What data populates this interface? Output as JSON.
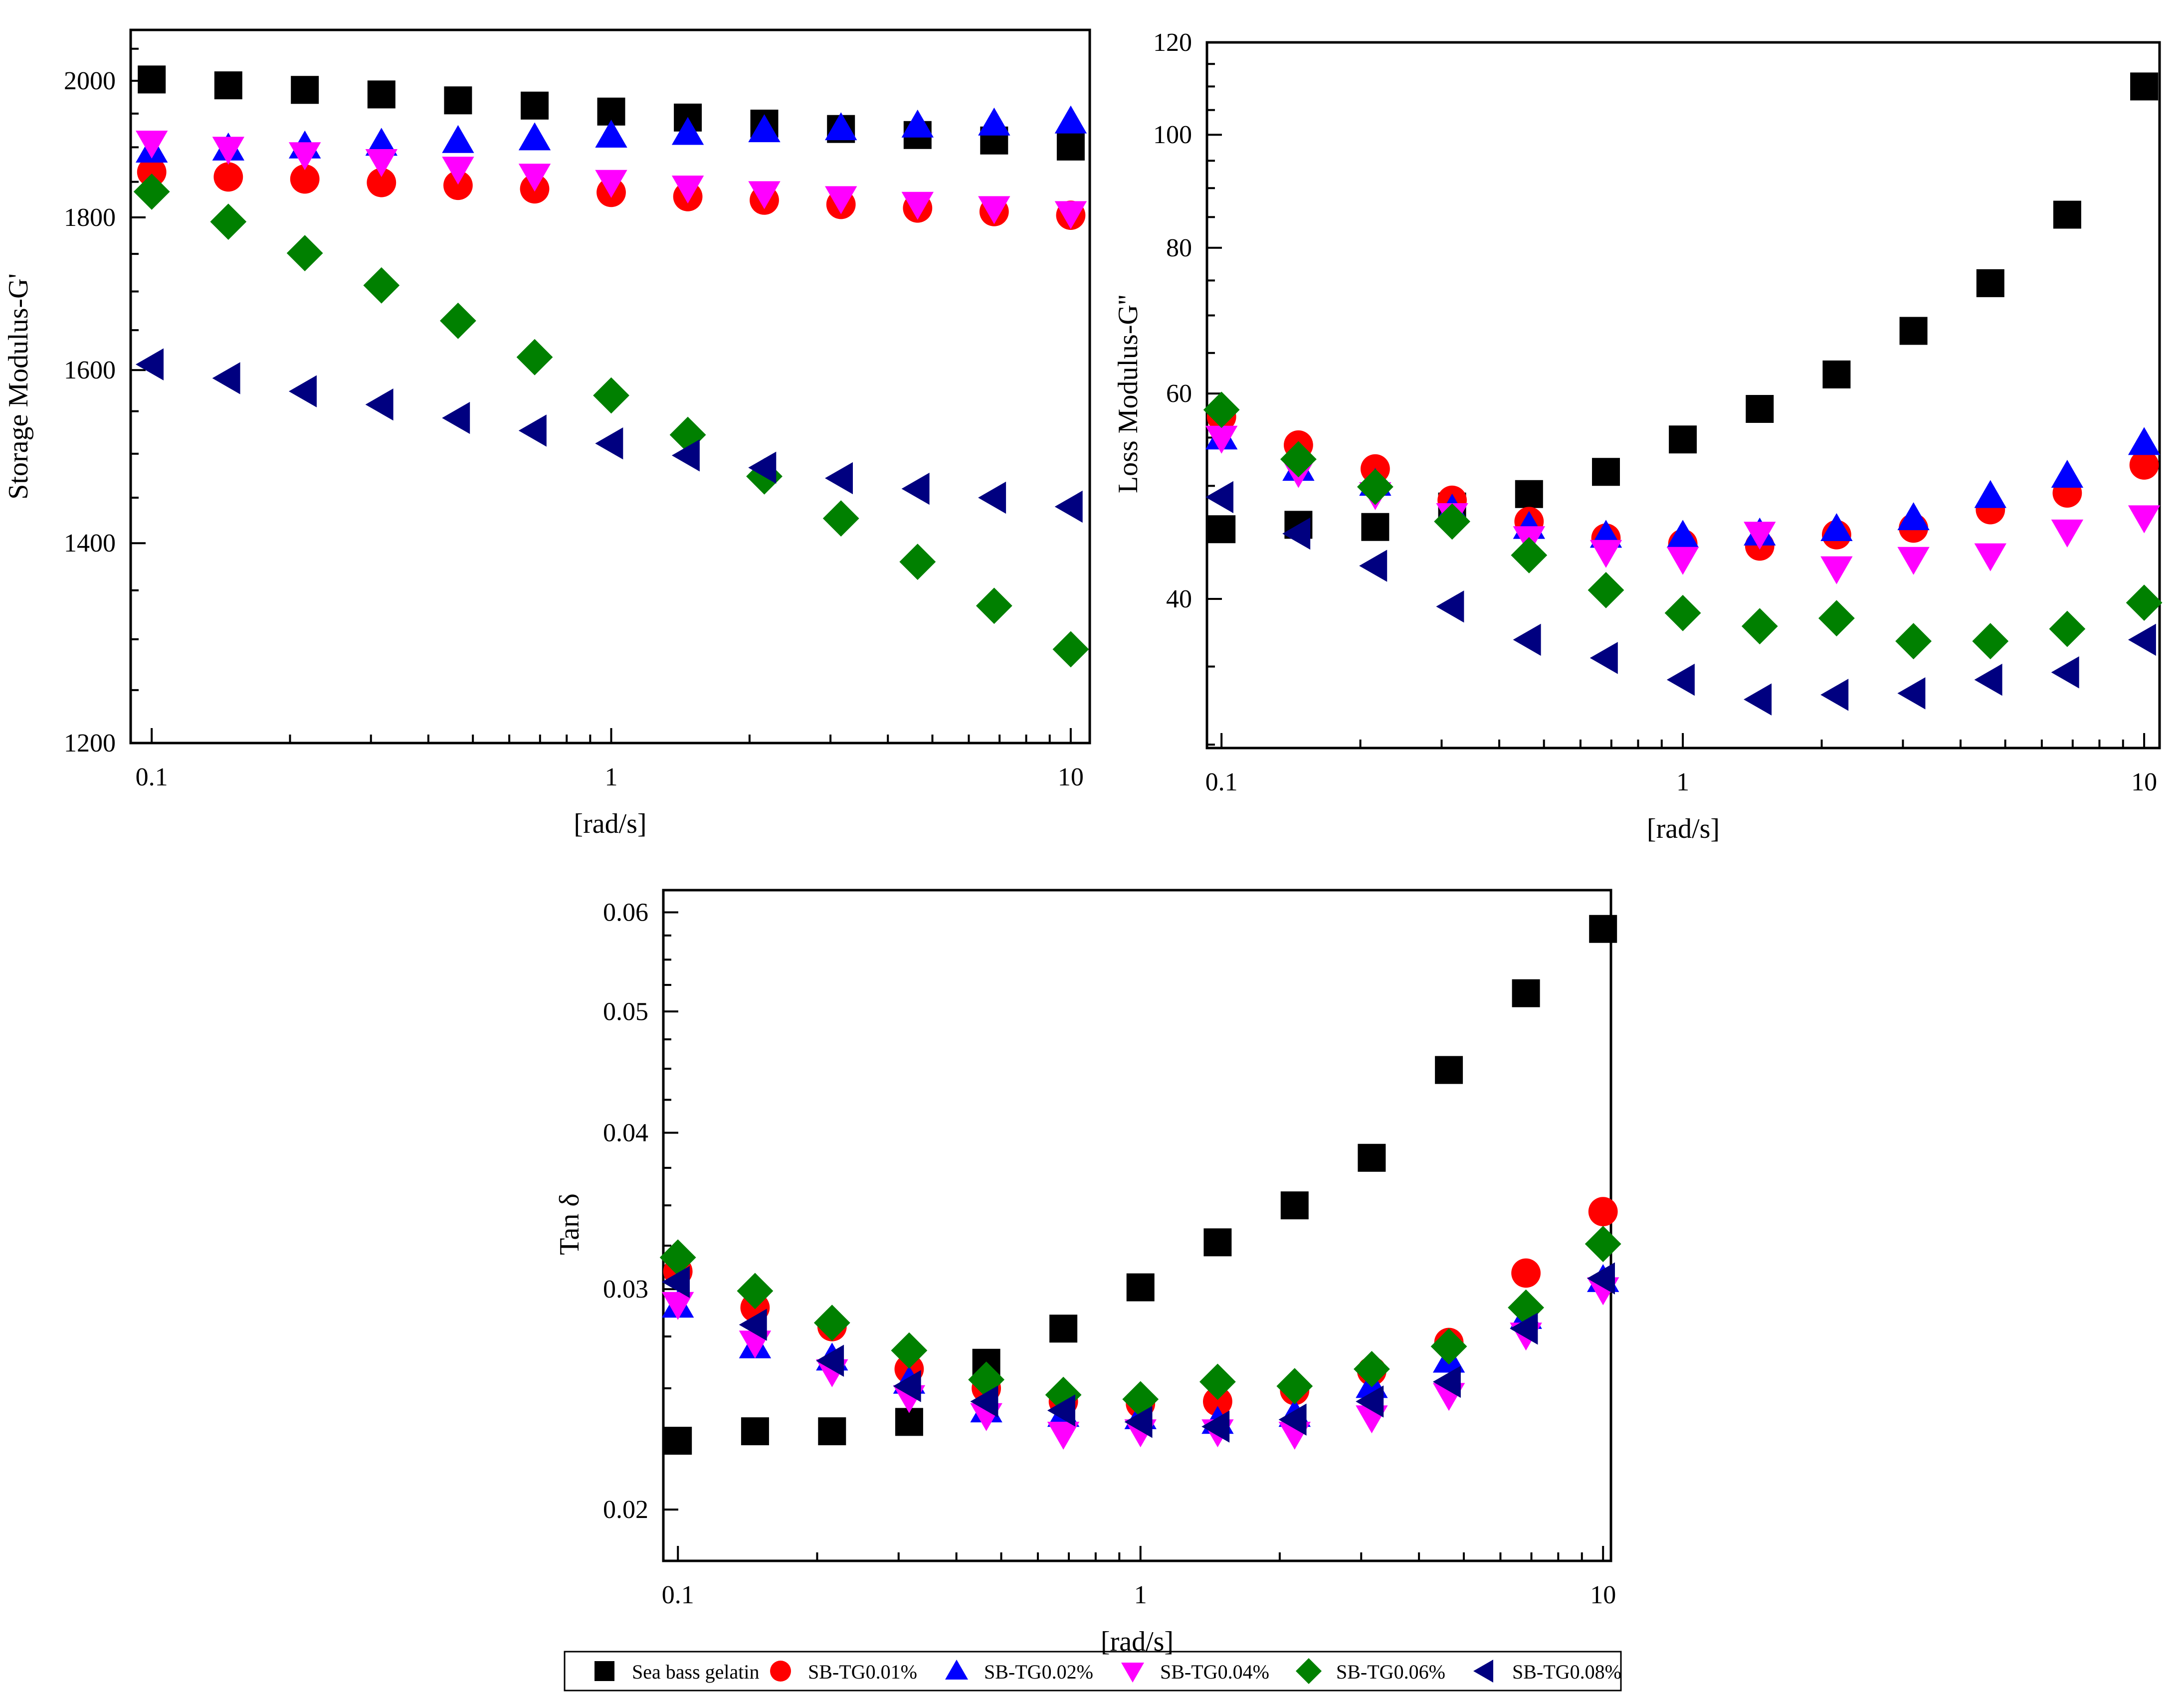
{
  "series_styles": [
    {
      "name": "Sea bass gelatin",
      "marker": "square",
      "color": "#000000"
    },
    {
      "name": "SB-TG0.01%",
      "marker": "circle",
      "color": "#ff0000"
    },
    {
      "name": "SB-TG0.02%",
      "marker": "triangle-up",
      "color": "#0000ff"
    },
    {
      "name": "SB-TG0.04%",
      "marker": "triangle-down",
      "color": "#ff00ff"
    },
    {
      "name": "SB-TG0.06%",
      "marker": "diamond",
      "color": "#008000"
    },
    {
      "name": "SB-TG0.08%",
      "marker": "triangle-left",
      "color": "#000080"
    }
  ],
  "chart_data": [
    {
      "id": "storage",
      "type": "scatter",
      "xscale": "log",
      "yscale": "log",
      "xlabel": "[rad/s]",
      "ylabel": "Storage Modulus-G'",
      "xlim": [
        0.09,
        11
      ],
      "ylim": [
        1200,
        2080
      ],
      "xticks": [
        {
          "v": 0.1,
          "label": "0.1"
        },
        {
          "v": 1,
          "label": "1"
        },
        {
          "v": 10,
          "label": "10"
        }
      ],
      "yticks": [
        {
          "v": 1200,
          "label": "1200"
        },
        {
          "v": 1400,
          "label": "1400"
        },
        {
          "v": 1600,
          "label": "1600"
        },
        {
          "v": 1800,
          "label": "1800"
        },
        {
          "v": 2000,
          "label": "2000"
        }
      ],
      "x": [
        0.1,
        0.1468,
        0.2154,
        0.3162,
        0.4642,
        0.6813,
        1,
        1.468,
        2.154,
        3.162,
        4.642,
        6.813,
        10
      ],
      "x_note": "13 points log-spaced 0.1 to 10",
      "series": [
        {
          "name": "Sea bass gelatin",
          "values": [
            2002,
            1993,
            1986,
            1979,
            1970,
            1962,
            1953,
            1944,
            1935,
            1927,
            1918,
            1910,
            1901
          ]
        },
        {
          "name": "SB-TG0.01%",
          "values": [
            1864,
            1857,
            1854,
            1849,
            1845,
            1840,
            1835,
            1829,
            1824,
            1818,
            1813,
            1808,
            1803
          ]
        },
        {
          "name": "SB-TG0.02%",
          "values": [
            1895,
            1898,
            1901,
            1905,
            1909,
            1913,
            1917,
            1921,
            1925,
            1928,
            1932,
            1935,
            1938
          ]
        },
        {
          "name": "SB-TG0.04%",
          "values": [
            1907,
            1898,
            1890,
            1880,
            1869,
            1859,
            1850,
            1842,
            1834,
            1827,
            1819,
            1813,
            1806
          ]
        },
        {
          "name": "SB-TG0.06%",
          "values": [
            1836,
            1794,
            1751,
            1708,
            1662,
            1616,
            1569,
            1522,
            1474,
            1427,
            1380,
            1334,
            1290
          ]
        },
        {
          "name": "SB-TG0.08%",
          "values": [
            1607,
            1590,
            1574,
            1558,
            1542,
            1527,
            1512,
            1498,
            1484,
            1472,
            1460,
            1450,
            1440
          ]
        }
      ]
    },
    {
      "id": "loss",
      "type": "scatter",
      "xscale": "log",
      "yscale": "log",
      "xlabel": "[rad/s]",
      "ylabel": "Loss Modulus-G''",
      "xlim": [
        0.093,
        10.8
      ],
      "ylim": [
        29.8,
        120
      ],
      "xticks": [
        {
          "v": 0.1,
          "label": "0.1"
        },
        {
          "v": 1,
          "label": "1"
        },
        {
          "v": 10,
          "label": "10"
        }
      ],
      "yticks": [
        {
          "v": 40,
          "label": "40"
        },
        {
          "v": 60,
          "label": "60"
        },
        {
          "v": 80,
          "label": "80"
        },
        {
          "v": 100,
          "label": "100"
        },
        {
          "v": 120,
          "label": "120"
        }
      ],
      "x": [
        0.1,
        0.1468,
        0.2154,
        0.3162,
        0.4642,
        0.6813,
        1,
        1.468,
        2.154,
        3.162,
        4.642,
        6.813,
        10
      ],
      "series": [
        {
          "name": "Sea bass gelatin",
          "values": [
            45.9,
            46.3,
            46.1,
            48.0,
            49.2,
            51.4,
            54.8,
            58.2,
            62.3,
            67.9,
            74.6,
            85.4,
            110.0
          ]
        },
        {
          "name": "SB-TG0.01%",
          "values": [
            57.3,
            54.2,
            51.7,
            48.6,
            46.6,
            45.1,
            44.6,
            44.4,
            45.4,
            46.0,
            47.7,
            49.3,
            52.1
          ]
        },
        {
          "name": "SB-TG0.02%",
          "values": [
            55.0,
            51.7,
            50.2,
            47.7,
            46.1,
            45.3,
            45.3,
            45.5,
            45.9,
            46.9,
            49.0,
            51.0,
            54.4
          ]
        },
        {
          "name": "SB-TG0.04%",
          "values": [
            55.0,
            51.4,
            49.2,
            47.2,
            45.1,
            43.9,
            43.3,
            45.5,
            42.5,
            43.3,
            43.6,
            45.7,
            47.0
          ]
        },
        {
          "name": "SB-TG0.06%",
          "values": [
            58.1,
            52.7,
            49.9,
            46.6,
            43.6,
            40.7,
            38.9,
            37.9,
            38.5,
            36.8,
            36.8,
            37.7,
            39.7
          ]
        },
        {
          "name": "SB-TG0.08%",
          "values": [
            48.9,
            45.5,
            42.7,
            39.4,
            36.9,
            35.6,
            34.1,
            32.8,
            33.1,
            33.2,
            34.1,
            34.6,
            36.9
          ]
        }
      ]
    },
    {
      "id": "tan",
      "type": "scatter",
      "xscale": "log",
      "yscale": "log",
      "xlabel": "[rad/s]",
      "ylabel": "Tan δ",
      "xlim": [
        0.093,
        10.4
      ],
      "ylim": [
        0.0182,
        0.0625
      ],
      "xticks": [
        {
          "v": 0.1,
          "label": "0.1"
        },
        {
          "v": 1,
          "label": "1"
        },
        {
          "v": 10,
          "label": "10"
        }
      ],
      "yticks": [
        {
          "v": 0.02,
          "label": "0.02"
        },
        {
          "v": 0.03,
          "label": "0.03"
        },
        {
          "v": 0.04,
          "label": "0.04"
        },
        {
          "v": 0.05,
          "label": "0.05"
        },
        {
          "v": 0.06,
          "label": "0.06"
        }
      ],
      "x": [
        0.1,
        0.1468,
        0.2154,
        0.3162,
        0.4642,
        0.6813,
        1,
        1.468,
        2.154,
        3.162,
        4.642,
        6.813,
        10
      ],
      "series": [
        {
          "name": "Sea bass gelatin",
          "values": [
            0.0227,
            0.0231,
            0.0231,
            0.0235,
            0.0262,
            0.0279,
            0.0301,
            0.0327,
            0.035,
            0.0382,
            0.0449,
            0.0517,
            0.0582
          ]
        },
        {
          "name": "SB-TG0.01%",
          "values": [
            0.031,
            0.029,
            0.028,
            0.0259,
            0.025,
            0.0244,
            0.0243,
            0.0244,
            0.0249,
            0.0258,
            0.0272,
            0.0309,
            0.0346
          ]
        },
        {
          "name": "SB-TG0.02%",
          "values": [
            0.0291,
            0.027,
            0.0264,
            0.0253,
            0.024,
            0.0238,
            0.0237,
            0.0235,
            0.0238,
            0.0251,
            0.0263,
            0.0285,
            0.0305
          ]
        },
        {
          "name": "SB-TG0.04%",
          "values": [
            0.0292,
            0.0272,
            0.0258,
            0.0246,
            0.0238,
            0.023,
            0.0231,
            0.0231,
            0.023,
            0.0237,
            0.0247,
            0.0276,
            0.03
          ]
        },
        {
          "name": "SB-TG0.06%",
          "values": [
            0.0318,
            0.0299,
            0.0282,
            0.0268,
            0.0254,
            0.0247,
            0.0245,
            0.0253,
            0.0251,
            0.0259,
            0.027,
            0.029,
            0.0326
          ]
        },
        {
          "name": "SB-TG0.08%",
          "values": [
            0.0304,
            0.0281,
            0.0263,
            0.0251,
            0.0244,
            0.024,
            0.0235,
            0.0233,
            0.0236,
            0.0244,
            0.0253,
            0.0279,
            0.0306
          ]
        }
      ]
    }
  ],
  "legend": {
    "placement": "bottom-center",
    "entries": [
      "Sea bass gelatin",
      "SB-TG0.01%",
      "SB-TG0.02%",
      "SB-TG0.04%",
      "SB-TG0.06%",
      "SB-TG0.08%"
    ]
  }
}
